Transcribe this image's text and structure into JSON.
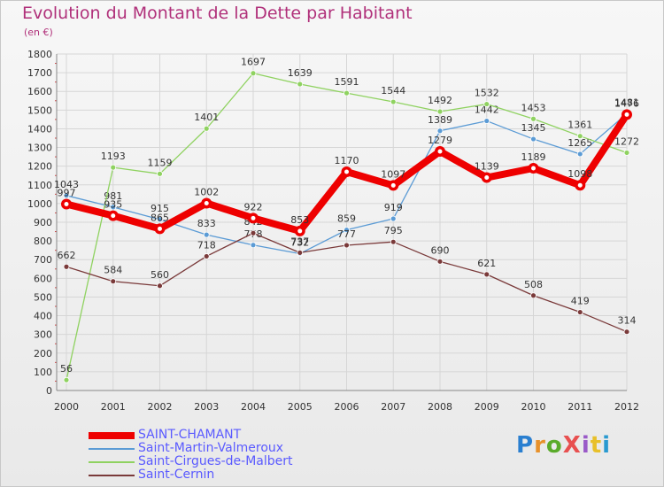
{
  "title": "Evolution du Montant de la Dette par Habitant",
  "subtitle": "(en €)",
  "brand": {
    "text": "ProXiti",
    "letter_colors": [
      "#2a7fd0",
      "#e8912a",
      "#5aab2a",
      "#e85050",
      "#9a5ac8",
      "#e8c02a",
      "#2a9ad0"
    ]
  },
  "chart_data": {
    "type": "line",
    "title": "Evolution du Montant de la Dette par Habitant",
    "ylabel": "(en €)",
    "xlabel": "",
    "ylim": [
      0,
      1800
    ],
    "yticks": [
      0,
      100,
      200,
      300,
      400,
      500,
      600,
      700,
      800,
      900,
      1000,
      1100,
      1200,
      1300,
      1400,
      1500,
      1600,
      1700,
      1800
    ],
    "x": [
      "2000",
      "2001",
      "2002",
      "2003",
      "2004",
      "2005",
      "2006",
      "2007",
      "2008",
      "2009",
      "2010",
      "2011",
      "2012"
    ],
    "grid": true,
    "legend_position": "bottom-left",
    "series": [
      {
        "name": "Saint-Martin-Valmeroux",
        "color": "#5b9bd5",
        "values": [
          1043,
          981,
          915,
          833,
          778,
          732,
          859,
          919,
          1389,
          1442,
          1345,
          1265,
          1481
        ],
        "labels": [
          "1043",
          "981",
          "915",
          "833",
          "778",
          "732",
          "859",
          "919",
          "1389",
          "1442",
          "1345",
          "1265",
          "1481"
        ]
      },
      {
        "name": "Saint-Cirgues-de-Malbert",
        "color": "#8fd260",
        "values": [
          56,
          1193,
          1159,
          1401,
          1697,
          1639,
          1591,
          1544,
          1492,
          1532,
          1453,
          1361,
          1272
        ],
        "labels": [
          "56",
          "1193",
          "1159",
          "1401",
          "1697",
          "1639",
          "1591",
          "1544",
          "1492",
          "1532",
          "1453",
          "1361",
          "1272"
        ]
      },
      {
        "name": "Saint-Cernin",
        "color": "#7a3a3a",
        "values": [
          662,
          584,
          560,
          718,
          842,
          737,
          777,
          795,
          690,
          621,
          508,
          419,
          314
        ],
        "labels": [
          "662",
          "584",
          "560",
          "718",
          "842",
          "737",
          "777",
          "795",
          "690",
          "621",
          "508",
          "419",
          "314"
        ]
      },
      {
        "name": "SAINT-CHAMANT",
        "color": "#ee0000",
        "values": [
          997,
          935,
          865,
          1002,
          922,
          853,
          1170,
          1097,
          1279,
          1139,
          1189,
          1098,
          1476
        ],
        "labels": [
          "997",
          "935",
          "865",
          "1002",
          "922",
          "853",
          "1170",
          "1097",
          "1279",
          "1139",
          "1189",
          "1098",
          "1476"
        ]
      }
    ]
  },
  "legend": [
    {
      "label": "SAINT-CHAMANT",
      "color": "#ee0000",
      "thick": true
    },
    {
      "label": "Saint-Martin-Valmeroux",
      "color": "#5b9bd5",
      "thick": false
    },
    {
      "label": "Saint-Cirgues-de-Malbert",
      "color": "#8fd260",
      "thick": false
    },
    {
      "label": "Saint-Cernin",
      "color": "#7a3a3a",
      "thick": false
    }
  ]
}
